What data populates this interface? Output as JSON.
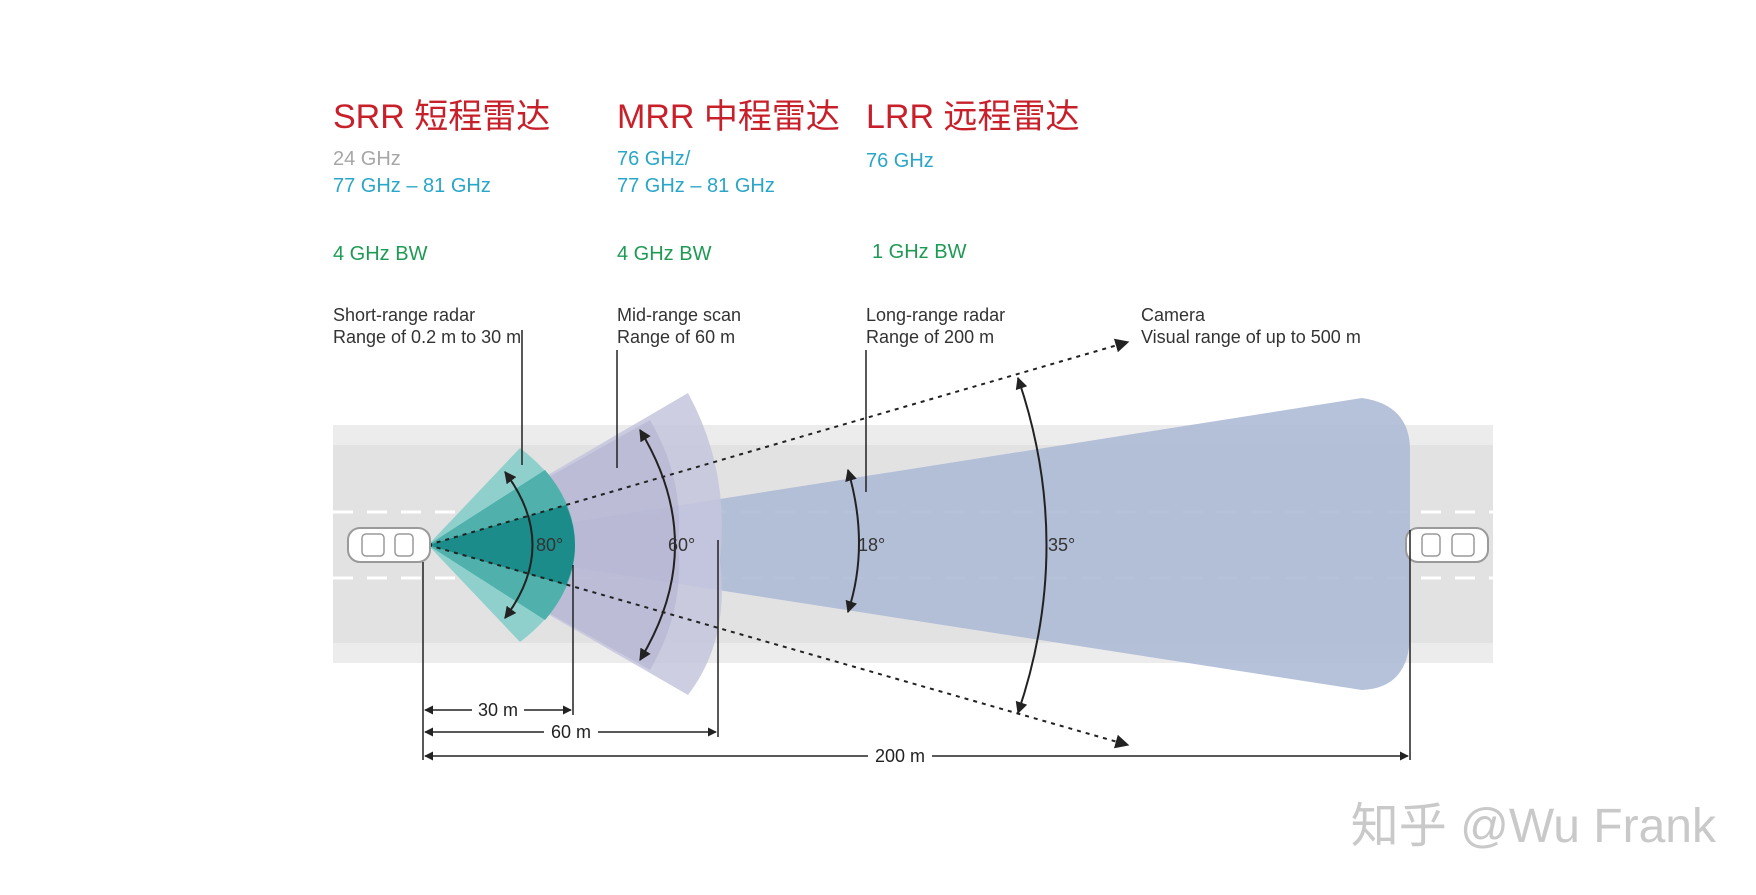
{
  "radars": [
    {
      "title": "SRR 短程雷达",
      "freq_lines": [
        "24 GHz",
        "77 GHz – 81 GHz"
      ],
      "bw": "4 GHz BW",
      "desc_lines": [
        "Short-range radar",
        "Range of 0.2 m to 30 m"
      ],
      "angle": "80°"
    },
    {
      "title": "MRR 中程雷达",
      "freq_lines": [
        "76 GHz/",
        "77 GHz – 81 GHz"
      ],
      "bw": "4 GHz BW",
      "desc_lines": [
        "Mid-range scan",
        "Range of 60 m"
      ],
      "angle": "60°"
    },
    {
      "title": "LRR 远程雷达",
      "freq_lines": [
        "76 GHz"
      ],
      "bw": "1 GHz BW",
      "desc_lines": [
        "Long-range radar",
        "Range of 200 m"
      ],
      "angle": "18°"
    }
  ],
  "camera": {
    "desc_lines": [
      "Camera",
      "Visual range of up to 500 m"
    ],
    "angle": "35°"
  },
  "distances": [
    "30 m",
    "60 m",
    "200 m"
  ],
  "watermark": "知乎 @Wu Frank",
  "colors": {
    "title_red": "#c8202a",
    "freq_cyan": "#2aa6c8",
    "freq_gray": "#a6a6a6",
    "bw_green": "#1f9a55",
    "srr_teal": "#1b8c8a",
    "mrr_lavender": "#b9b9d6",
    "lrr_blue": "#aebad6",
    "road": "#ececec"
  }
}
